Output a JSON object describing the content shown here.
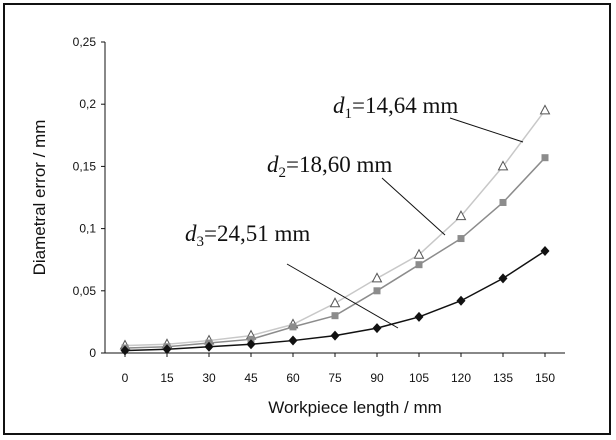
{
  "chart_data": {
    "type": "line",
    "xlabel": "Workpiece length / mm",
    "ylabel": "Diametral error / mm",
    "categories": [
      "0",
      "15",
      "30",
      "45",
      "60",
      "75",
      "90",
      "105",
      "120",
      "135",
      "150"
    ],
    "x": [
      0,
      15,
      30,
      45,
      60,
      75,
      90,
      105,
      120,
      135,
      150
    ],
    "ylim": [
      0,
      0.25
    ],
    "yticks": [
      0,
      0.05,
      0.1,
      0.15,
      0.2,
      0.25
    ],
    "ytick_labels": [
      "0",
      "0,05",
      "0,1",
      "0,15",
      "0,2",
      "0,25"
    ],
    "grid": false,
    "series": [
      {
        "name": "d1=14,64 mm",
        "label_parts": [
          "d",
          "1",
          "=14,64 mm"
        ],
        "marker": "triangle-open",
        "color": "#c8c8c8",
        "values": [
          0.006,
          0.007,
          0.01,
          0.014,
          0.023,
          0.04,
          0.06,
          0.079,
          0.11,
          0.15,
          0.195
        ]
      },
      {
        "name": "d2=18,60 mm",
        "label_parts": [
          "d",
          "2",
          "=18,60 mm"
        ],
        "marker": "square",
        "color": "#8c8c8c",
        "values": [
          0.004,
          0.005,
          0.008,
          0.011,
          0.021,
          0.03,
          0.05,
          0.071,
          0.092,
          0.121,
          0.157
        ]
      },
      {
        "name": "d3=24,51 mm",
        "label_parts": [
          "d",
          "3",
          "=24,51 mm"
        ],
        "marker": "diamond",
        "color": "#111111",
        "values": [
          0.002,
          0.003,
          0.005,
          0.007,
          0.01,
          0.014,
          0.02,
          0.029,
          0.042,
          0.06,
          0.082
        ]
      }
    ]
  }
}
